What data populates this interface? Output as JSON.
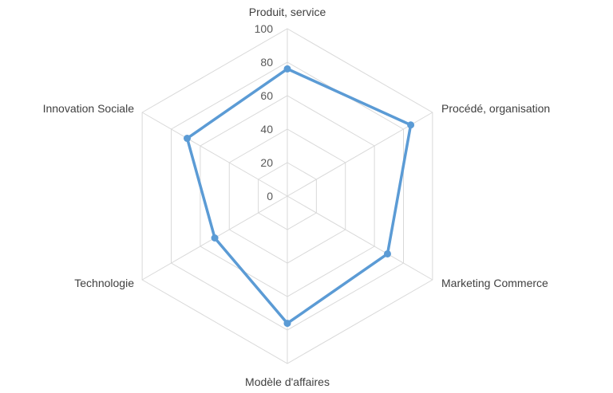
{
  "chart_data": {
    "type": "radar",
    "title": "",
    "categories": [
      "Produit, service",
      "Procédé, organisation",
      "Marketing Commerce",
      "Modèle d'affaires",
      "Technologie",
      "Innovation Sociale"
    ],
    "series": [
      {
        "values": [
          76,
          85,
          69,
          76,
          50,
          69
        ],
        "color": "#5b9bd5"
      }
    ],
    "rlim": [
      0,
      100
    ],
    "ticks": [
      "0",
      "20",
      "40",
      "60",
      "80",
      "100"
    ],
    "grid": true,
    "legend": "none"
  }
}
